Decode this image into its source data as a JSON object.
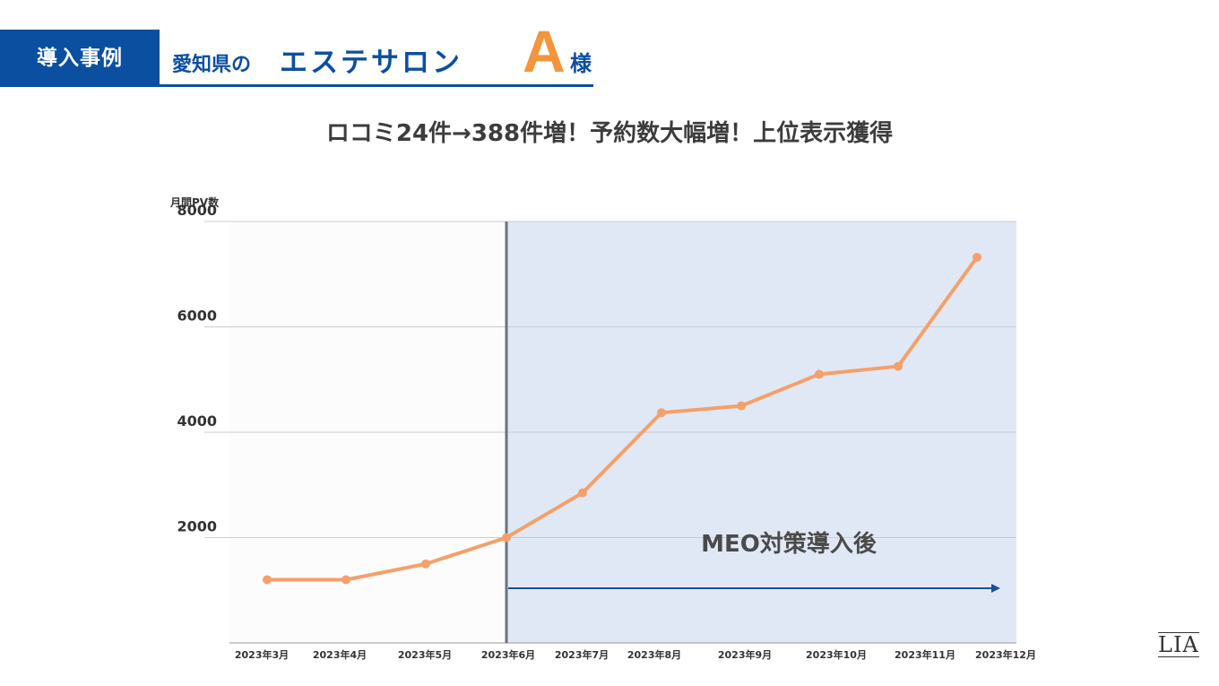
{
  "header": {
    "badge": "導入事例",
    "prefecture": "愛知県の",
    "salon": "エステサロン",
    "client_letter": "A",
    "client_suffix": "様"
  },
  "headline": "ロコミ24件→388件増！予約数大幅増！上位表示獲得",
  "logo": "LIA",
  "colors": {
    "brand_blue": "#0b4fa0",
    "accent_orange": "#f4943b",
    "line": "#f4a06a",
    "shaded_region": "#e1e8f5",
    "arrow": "#1e4f99"
  },
  "chart_data": {
    "type": "line",
    "ylabel": "月間PV数",
    "ylim": [
      0,
      8000
    ],
    "yticks": [
      8000,
      6000,
      4000,
      2000
    ],
    "categories": [
      "2023年3月",
      "2023年4月",
      "2023年5月",
      "2023年6月",
      "2023年7月",
      "2023年8月",
      "2023年9月",
      "2023年10月",
      "2023年11月",
      "2023年12月"
    ],
    "series": [
      {
        "values": [
          1200,
          1200,
          1500,
          2000,
          2850,
          4370,
          4500,
          5100,
          5250,
          7320
        ]
      }
    ],
    "grid": true,
    "annotation": {
      "text": "MEO対策導入後",
      "start_category": "2023年6月"
    }
  }
}
